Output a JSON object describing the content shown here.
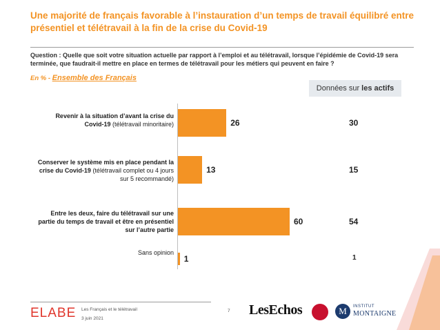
{
  "header": {
    "title": "Une majorité de français favorable à l’instauration d’un temps de travail équilibré entre présentiel et télétravail à la fin de la crise du Covid-19",
    "question": "Question : Quelle que soit votre situation actuelle par rapport à l’emploi et au télétravail, lorsque l’épidémie de Covid-19 sera terminée, que faudrait-il mettre en place en termes de télétravail pour les métiers qui peuvent en faire ?",
    "base_prefix": "En % - ",
    "base_label": "Ensemble des Français",
    "actifs_prefix": "Données sur",
    "actifs_strong": "les actifs"
  },
  "chart_data": {
    "type": "bar",
    "orientation": "horizontal",
    "categories": [
      "Revenir à la situation d’avant la crise du Covid-19 (télétravail minoritaire)",
      "Conserver le système mis en place pendant la crise du Covid-19 (télétravail complet ou 4 jours sur 5 recommandé)",
      "Entre les deux, faire du télétravail sur une partie du temps de travail et être en présentiel sur l’autre partie",
      "Sans opinion"
    ],
    "labels": [
      {
        "bold": "Revenir à la situation d’avant la crise du Covid-19",
        "normal": " (télétravail minoritaire)"
      },
      {
        "bold": "Conserver le système mis en place pendant la crise du Covid-19",
        "normal": " (télétravail complet ou 4 jours sur 5 recommandé)"
      },
      {
        "bold": "Entre les deux, faire du télétravail sur une partie du temps de travail et être en présentiel sur l’autre partie",
        "normal": ""
      },
      {
        "bold": "",
        "normal": "Sans opinion"
      }
    ],
    "series": [
      {
        "values": [
          26,
          13,
          60,
          1
        ],
        "color": "#f39324"
      },
      {
        "values": [
          30,
          15,
          54,
          1
        ]
      }
    ],
    "xlim": [
      0,
      100
    ],
    "unit": "%"
  },
  "footer": {
    "brand": "ELABE",
    "study": "Les Français et le télétravail",
    "date": "3 juin 2021",
    "page": "7",
    "partner1": "LesEchos",
    "partner3_initial": "M",
    "partner3_line1": "INSTITUT",
    "partner3_line2": "MONTAIGNE"
  },
  "colors": {
    "accent": "#f39324",
    "brand_red": "#e0352b"
  }
}
